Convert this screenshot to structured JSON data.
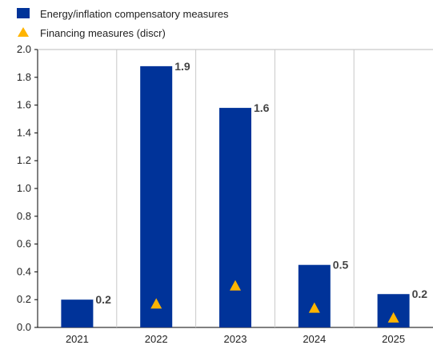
{
  "chart_data": {
    "type": "bar",
    "categories": [
      "2021",
      "2022",
      "2023",
      "2024",
      "2025"
    ],
    "series": [
      {
        "name": "Energy/inflation compensatory measures",
        "type": "bar",
        "color": "#003399",
        "values": [
          0.2,
          1.88,
          1.58,
          0.45,
          0.24
        ],
        "data_labels": [
          "0.2",
          "1.9",
          "1.6",
          "0.5",
          "0.2"
        ]
      },
      {
        "name": "Financing measures (discr)",
        "type": "marker",
        "marker": "triangle",
        "color": "#FFB400",
        "values": [
          null,
          0.17,
          0.3,
          0.14,
          0.07
        ]
      }
    ],
    "ylim": [
      0,
      2.0
    ],
    "yticks": [
      "0.0",
      "0.2",
      "0.4",
      "0.6",
      "0.8",
      "1.0",
      "1.2",
      "1.4",
      "1.6",
      "1.8",
      "2.0"
    ],
    "grid": "vertical category separators",
    "legend_position": "top-left"
  }
}
